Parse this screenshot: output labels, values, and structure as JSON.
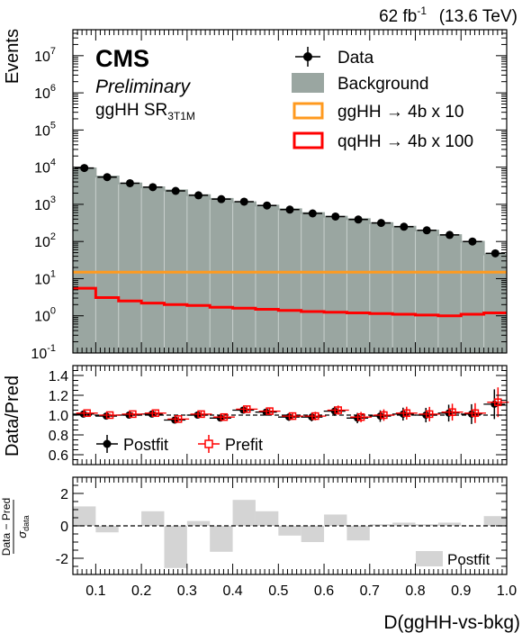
{
  "header": {
    "lumi_text": "62 fb",
    "lumi_sup": "-1",
    "energy_text": "(13.6 TeV)",
    "experiment": "CMS",
    "status": "Preliminary",
    "region_text": "ggHH SR",
    "region_sub": "3T1M"
  },
  "chart_data": {
    "type": "bar",
    "xlabel": "D(ggHH-vs-bkg)",
    "xlim": [
      0.05,
      1.0
    ],
    "x_ticks": [
      "0.1",
      "0.2",
      "0.3",
      "0.4",
      "0.5",
      "0.6",
      "0.7",
      "0.8",
      "0.9",
      "1.0"
    ],
    "bin_edges": [
      0.05,
      0.1,
      0.15,
      0.2,
      0.25,
      0.3,
      0.35,
      0.4,
      0.45,
      0.5,
      0.55,
      0.6,
      0.65,
      0.7,
      0.75,
      0.8,
      0.85,
      0.9,
      0.95,
      1.0
    ],
    "panels": {
      "main": {
        "ylabel": "Events",
        "yscale": "log",
        "ylim": [
          0.1,
          50000000
        ],
        "y_ticks": [
          "10^-1",
          "10^0",
          "10^1",
          "10^2",
          "10^3",
          "10^4",
          "10^5",
          "10^6",
          "10^7"
        ],
        "legend_position": "top-right"
      },
      "ratio": {
        "ylabel": "Data/Pred",
        "ylim": [
          0.5,
          1.5
        ],
        "y_ticks": [
          "0.6",
          "0.8",
          "1.0",
          "1.2",
          "1.4"
        ],
        "legend_position": "bottom-left"
      },
      "pull": {
        "ylabel_numerator": "Data − Pred",
        "ylabel_denominator": "σ",
        "ylabel_denominator_sub": "data",
        "ylim": [
          -3,
          3
        ],
        "y_ticks": [
          "-2",
          "0",
          "2"
        ],
        "legend_position": "bottom-right"
      }
    },
    "series": [
      {
        "name": "Data",
        "panel": "main",
        "style": "points",
        "values": [
          9500,
          5400,
          3700,
          2900,
          2300,
          1750,
          1380,
          1180,
          930,
          720,
          570,
          470,
          390,
          315,
          250,
          200,
          150,
          100,
          48
        ]
      },
      {
        "name": "Background",
        "panel": "main",
        "style": "filled-histogram",
        "color": "#9aa6a1",
        "values": [
          9300,
          5600,
          3650,
          2880,
          2380,
          1760,
          1400,
          1140,
          920,
          740,
          580,
          465,
          398,
          312,
          251,
          198,
          148,
          98,
          45
        ]
      },
      {
        "name": "ggHH → 4b x 10",
        "panel": "main",
        "style": "step",
        "color": "#ff9a1f",
        "values": [
          15,
          15,
          15,
          15,
          15,
          15,
          15,
          15,
          15,
          15,
          15,
          15,
          15,
          15,
          15,
          15,
          15,
          15,
          15
        ]
      },
      {
        "name": "qqHH → 4b x 100",
        "panel": "main",
        "style": "step",
        "color": "#ff0000",
        "values": [
          5.5,
          3.1,
          2.5,
          2.2,
          2.0,
          1.9,
          1.7,
          1.6,
          1.5,
          1.4,
          1.3,
          1.25,
          1.2,
          1.15,
          1.1,
          1.05,
          1.0,
          1.1,
          1.2
        ]
      },
      {
        "name": "Postfit",
        "panel": "ratio",
        "style": "points",
        "color": "#000000",
        "values": [
          1.01,
          0.99,
          1.0,
          1.01,
          0.95,
          1.0,
          0.97,
          1.05,
          1.03,
          0.98,
          0.98,
          1.04,
          0.97,
          0.99,
          1.01,
          1.0,
          1.02,
          1.01,
          1.11
        ],
        "errors": [
          0.01,
          0.014,
          0.017,
          0.02,
          0.022,
          0.025,
          0.028,
          0.031,
          0.034,
          0.038,
          0.043,
          0.047,
          0.052,
          0.058,
          0.065,
          0.073,
          0.085,
          0.1,
          0.15
        ]
      },
      {
        "name": "Prefit",
        "panel": "ratio",
        "style": "points",
        "color": "#ff0000",
        "values": [
          1.02,
          1.0,
          1.01,
          1.02,
          0.96,
          1.01,
          0.98,
          1.06,
          1.04,
          0.99,
          0.99,
          1.05,
          0.98,
          1.0,
          1.02,
          1.01,
          1.03,
          1.02,
          1.13
        ],
        "errors": [
          0.01,
          0.014,
          0.017,
          0.02,
          0.022,
          0.025,
          0.028,
          0.031,
          0.034,
          0.038,
          0.043,
          0.047,
          0.052,
          0.058,
          0.065,
          0.073,
          0.085,
          0.1,
          0.15
        ]
      },
      {
        "name": "Postfit",
        "panel": "pull",
        "style": "filled-histogram",
        "color": "#d4d4d4",
        "values": [
          1.2,
          -0.4,
          0.0,
          0.9,
          -2.6,
          0.3,
          -1.6,
          1.6,
          0.9,
          -0.6,
          -1.0,
          0.7,
          -0.9,
          0.1,
          0.2,
          0.1,
          0.2,
          0.0,
          0.6
        ]
      }
    ]
  }
}
